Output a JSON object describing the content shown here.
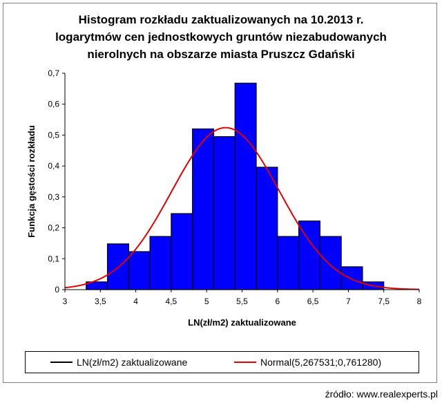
{
  "chart_data": {
    "type": "bar",
    "title_lines": [
      "Histogram rozkładu zaktualizowanych na 10.2013 r.",
      "logarytmów cen jednostkowych gruntów niezabudowanych",
      "nierolnych na obszarze miasta Pruszcz Gdański"
    ],
    "xlabel": "LN(zł/m2)  zaktualizowane",
    "ylabel": "Funkcja gęstości rozkładu",
    "xlim": [
      3,
      8
    ],
    "ylim": [
      0,
      0.7
    ],
    "x_ticks": [
      {
        "value": 3,
        "label": "3"
      },
      {
        "value": 3.5,
        "label": "3,5"
      },
      {
        "value": 4,
        "label": "4"
      },
      {
        "value": 4.5,
        "label": "4,5"
      },
      {
        "value": 5,
        "label": "5"
      },
      {
        "value": 5.5,
        "label": "5,5"
      },
      {
        "value": 6,
        "label": "6"
      },
      {
        "value": 6.5,
        "label": "6,5"
      },
      {
        "value": 7,
        "label": "7"
      },
      {
        "value": 7.5,
        "label": "7,5"
      },
      {
        "value": 8,
        "label": "8"
      }
    ],
    "y_ticks": [
      {
        "value": 0,
        "label": "0"
      },
      {
        "value": 0.1,
        "label": "0,1"
      },
      {
        "value": 0.2,
        "label": "0,2"
      },
      {
        "value": 0.3,
        "label": "0,3"
      },
      {
        "value": 0.4,
        "label": "0,4"
      },
      {
        "value": 0.5,
        "label": "0,5"
      },
      {
        "value": 0.6,
        "label": "0,6"
      },
      {
        "value": 0.7,
        "label": "0,7"
      }
    ],
    "bins": [
      {
        "x0": 3.3,
        "x1": 3.6,
        "value": 0.025
      },
      {
        "x0": 3.6,
        "x1": 3.9,
        "value": 0.148
      },
      {
        "x0": 3.9,
        "x1": 4.2,
        "value": 0.123
      },
      {
        "x0": 4.2,
        "x1": 4.5,
        "value": 0.172
      },
      {
        "x0": 4.5,
        "x1": 4.8,
        "value": 0.246
      },
      {
        "x0": 4.8,
        "x1": 5.1,
        "value": 0.52
      },
      {
        "x0": 5.1,
        "x1": 5.4,
        "value": 0.495
      },
      {
        "x0": 5.4,
        "x1": 5.7,
        "value": 0.668
      },
      {
        "x0": 5.7,
        "x1": 6.0,
        "value": 0.396
      },
      {
        "x0": 6.0,
        "x1": 6.3,
        "value": 0.172
      },
      {
        "x0": 6.3,
        "x1": 6.6,
        "value": 0.222
      },
      {
        "x0": 6.6,
        "x1": 6.9,
        "value": 0.172
      },
      {
        "x0": 6.9,
        "x1": 7.2,
        "value": 0.074
      },
      {
        "x0": 7.2,
        "x1": 7.5,
        "value": 0.025
      }
    ],
    "normal": {
      "mean": 5.267531,
      "sd": 0.76128
    },
    "legend": [
      {
        "label": "LN(zł/m2) zaktualizowane",
        "color": "#000000"
      },
      {
        "label": "Normal(5,267531;0,761280)",
        "color": "#e00000"
      }
    ],
    "bar_color": "#0000ff",
    "bar_edge_color": "#000000",
    "curve_color": "#e00000"
  },
  "source_text": "źródło: www.realexperts.pl"
}
